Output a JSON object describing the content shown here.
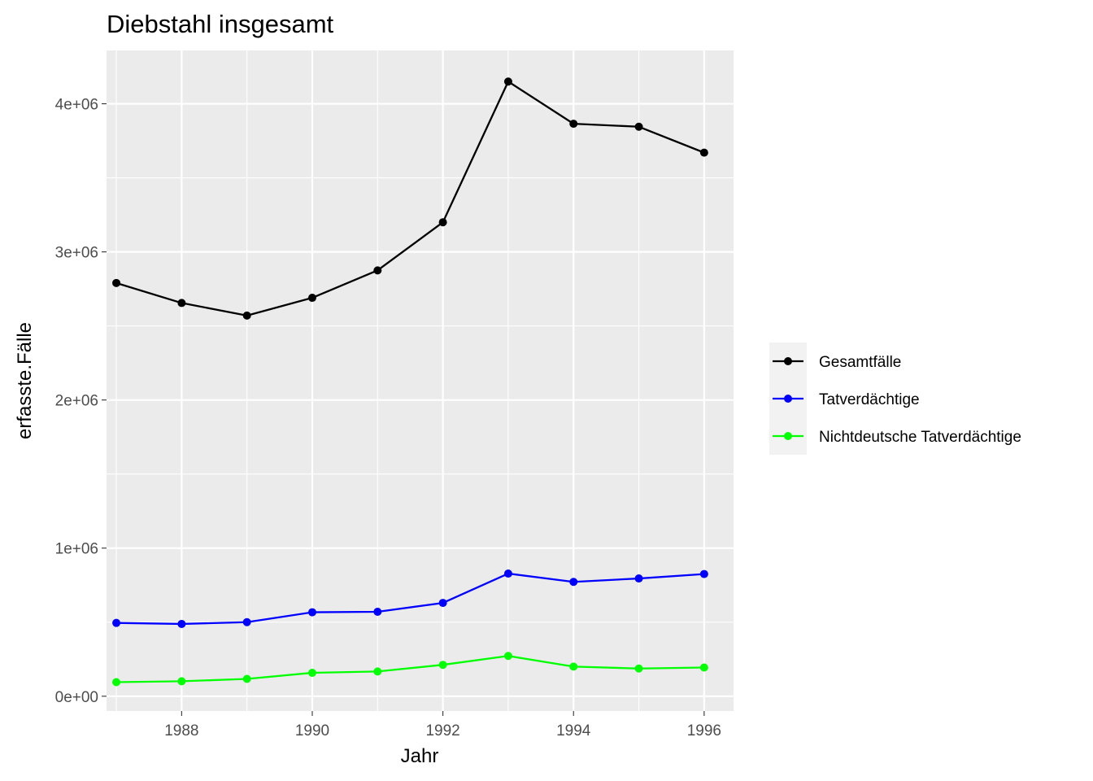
{
  "chart_data": {
    "type": "line",
    "title": "Diebstahl insgesamt",
    "xlabel": "Jahr",
    "ylabel": "erfasste.Fälle",
    "x": [
      1987,
      1988,
      1989,
      1990,
      1991,
      1992,
      1993,
      1994,
      1995,
      1996
    ],
    "xlim": [
      1986.85,
      1996.45
    ],
    "ylim": [
      -100000,
      4360000
    ],
    "x_ticks": [
      1988,
      1990,
      1992,
      1994,
      1996
    ],
    "x_tick_labels": [
      "1988",
      "1990",
      "1992",
      "1994",
      "1996"
    ],
    "y_ticks": [
      0,
      1000000,
      2000000,
      3000000,
      4000000
    ],
    "y_tick_labels": [
      "0e+00",
      "1e+06",
      "2e+06",
      "3e+06",
      "4e+06"
    ],
    "grid": true,
    "legend_position": "right",
    "series": [
      {
        "name": "Gesamtfälle",
        "color": "#000000",
        "values": [
          2790000,
          2655000,
          2570000,
          2690000,
          2875000,
          3200000,
          4150000,
          3865000,
          3845000,
          3670000
        ]
      },
      {
        "name": "Tatverdächtige",
        "color": "#0000ff",
        "values": [
          495000,
          488000,
          500000,
          567000,
          570000,
          630000,
          828000,
          772000,
          795000,
          825000
        ]
      },
      {
        "name": "Nichtdeutsche Tatverdächtige",
        "color": "#00ff00",
        "values": [
          95000,
          101000,
          117000,
          158000,
          167000,
          212000,
          272000,
          200000,
          187000,
          194000
        ]
      }
    ]
  }
}
